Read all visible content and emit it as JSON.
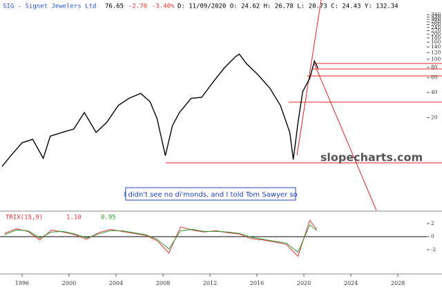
{
  "header": {
    "symbol": "SIG - Signet Jewelers Ltd",
    "last": "76.65",
    "change": "-2.70",
    "change_pct": "-3.40%",
    "details": "D: 11/09/2020 O:  24.62 H:  26.78 L:  20.73 C:  24.43 Y: 132.34"
  },
  "chart_data": [
    {
      "type": "line",
      "log_scale": true,
      "color": "#000000",
      "watermark": "slopecharts.com",
      "annotation": "I didn't see no di'monds, and I told Tom Sawyer so",
      "x": [
        1994.3,
        1995.0,
        1996.0,
        1996.9,
        1997.8,
        1998.4,
        1999.4,
        2000.4,
        2001.3,
        2002.3,
        2003.2,
        2004.2,
        2005.1,
        2006.1,
        2006.9,
        2007.5,
        2008.2,
        2008.8,
        2009.4,
        2010.4,
        2011.3,
        2012.3,
        2013.2,
        2014.2,
        2014.5,
        2015.1,
        2016.1,
        2017.1,
        2018.0,
        2018.8,
        2019.1,
        2019.5,
        2019.9,
        2020.5,
        2020.9,
        2021.2
      ],
      "values": [
        5.2,
        6.9,
        10,
        11,
        6.5,
        12,
        13.3,
        14.6,
        23,
        13.3,
        17.5,
        28,
        34,
        39,
        31,
        19.3,
        7,
        16,
        23,
        34,
        35,
        54,
        78,
        108,
        115,
        89,
        65,
        45,
        28,
        13.3,
        6.3,
        17.5,
        41,
        59,
        95,
        78
      ],
      "xlim": [
        1994.12,
        2031.76
      ],
      "xticks": [
        1996,
        2000,
        2004,
        2008,
        2012,
        2016,
        2020,
        2024,
        2028
      ],
      "ylim": [
        1.7,
        350
      ],
      "yticks": [
        20,
        40,
        60,
        80,
        100,
        120,
        140,
        160,
        180,
        200,
        220,
        240,
        260,
        280,
        300,
        320,
        340
      ]
    },
    {
      "type": "line",
      "title": "TRIX(15,9)",
      "x": [
        1994.5,
        1995.5,
        1996.5,
        1997.5,
        1998.5,
        1999.5,
        2000.5,
        2001.5,
        2002.5,
        2003.5,
        2004.5,
        2005.5,
        2006.5,
        2007.5,
        2008.5,
        2009.5,
        2010.5,
        2011.5,
        2012.5,
        2013.5,
        2014.5,
        2015.5,
        2016.5,
        2017.5,
        2018.5,
        2019.5,
        2020.5,
        2021.1
      ],
      "series": [
        {
          "color": "#e03030",
          "current": {
            "value": 1.1,
            "label": "1.10"
          },
          "values": [
            0.5,
            1.2,
            0.8,
            -0.5,
            1,
            0.7,
            0.3,
            -0.4,
            0.6,
            1.1,
            0.8,
            0.5,
            0.2,
            -0.6,
            -2.5,
            1.5,
            1,
            0.7,
            0.9,
            0.6,
            0.4,
            -0.3,
            -0.5,
            -0.8,
            -1.2,
            -3,
            2.5,
            1.1
          ]
        },
        {
          "color": "#2a9a2a",
          "current": {
            "value": 0.95,
            "label": "0.95"
          },
          "values": [
            0.3,
            1,
            0.9,
            -0.2,
            0.7,
            0.8,
            0.4,
            -0.2,
            0.4,
            0.9,
            0.9,
            0.6,
            0.3,
            -0.4,
            -1.9,
            0.9,
            1.1,
            0.8,
            0.8,
            0.7,
            0.5,
            -0.1,
            -0.4,
            -0.7,
            -1,
            -2.4,
            1.8,
            0.95
          ]
        }
      ],
      "xlim": [
        1994.12,
        2031.76
      ],
      "ylim": [
        -5.7,
        3.9
      ],
      "yticks": [
        2,
        0,
        -2
      ]
    }
  ]
}
